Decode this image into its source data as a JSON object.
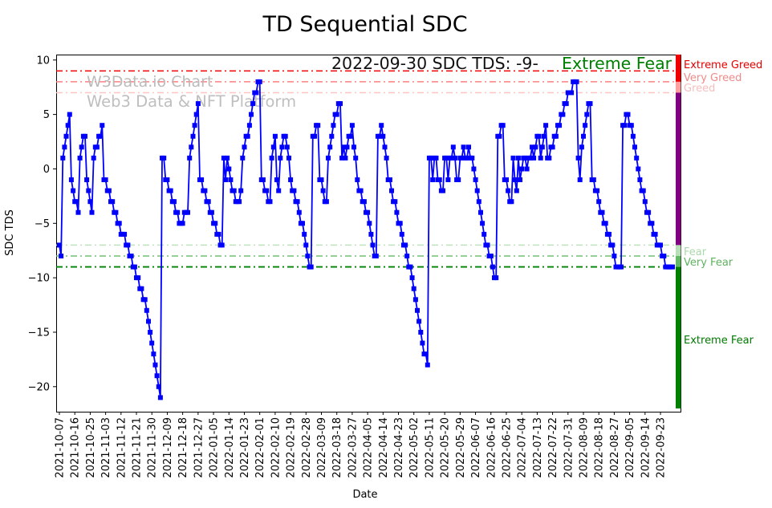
{
  "page": {
    "title": "TD Sequential SDC"
  },
  "chart_data": {
    "type": "line",
    "title": "TD Sequential SDC",
    "xlabel": "Date",
    "ylabel": "SDC TDS",
    "series_name": "SDC TDS",
    "start_date": "2021-10-07",
    "end_date": "2022-09-30",
    "frequency": "daily",
    "line_color": "#0000ff",
    "marker": "square",
    "ylim": [
      -22.3,
      10.5
    ],
    "grid": false,
    "legend": "none",
    "y_ticks": {
      "values": [
        10,
        5,
        0,
        -5,
        -10,
        -15,
        -20
      ],
      "labels": [
        "10",
        "5",
        "0",
        "−5",
        "−10",
        "−15",
        "−20"
      ]
    },
    "x_tick_interval_days": 9,
    "x_tick_labels": [
      "2021-10-07",
      "2021-10-16",
      "2021-10-25",
      "2021-11-03",
      "2021-11-12",
      "2021-11-21",
      "2021-11-30",
      "2021-12-09",
      "2021-12-18",
      "2021-12-27",
      "2022-01-05",
      "2022-01-14",
      "2022-01-23",
      "2022-02-01",
      "2022-02-10",
      "2022-02-19",
      "2022-02-28",
      "2022-03-09",
      "2022-03-18",
      "2022-03-27",
      "2022-04-05",
      "2022-04-14",
      "2022-04-23",
      "2022-05-02",
      "2022-05-11",
      "2022-05-20",
      "2022-05-29",
      "2022-06-07",
      "2022-06-16",
      "2022-06-25",
      "2022-07-04",
      "2022-07-13",
      "2022-07-22",
      "2022-07-31",
      "2022-08-09",
      "2022-08-18",
      "2022-08-27",
      "2022-09-05",
      "2022-09-14",
      "2022-09-23"
    ],
    "values": [
      -7,
      -8,
      1,
      2,
      3,
      4,
      5,
      -1,
      -2,
      -3,
      -3,
      -4,
      1,
      2,
      3,
      3,
      -1,
      -2,
      -3,
      -4,
      1,
      2,
      2,
      3,
      3,
      4,
      -1,
      -1,
      -2,
      -2,
      -3,
      -3,
      -4,
      -4,
      -5,
      -5,
      -6,
      -6,
      -6,
      -7,
      -7,
      -8,
      -8,
      -9,
      -9,
      -10,
      -10,
      -11,
      -11,
      -12,
      -12,
      -13,
      -14,
      -15,
      -16,
      -17,
      -18,
      -19,
      -20,
      -21,
      1,
      1,
      -1,
      -1,
      -2,
      -2,
      -3,
      -3,
      -4,
      -4,
      -5,
      -5,
      -5,
      -4,
      -4,
      -4,
      1,
      2,
      3,
      4,
      5,
      6,
      -1,
      -1,
      -2,
      -2,
      -3,
      -3,
      -4,
      -4,
      -5,
      -5,
      -6,
      -6,
      -7,
      -7,
      1,
      -1,
      1,
      0,
      -1,
      -2,
      -2,
      -3,
      -3,
      -3,
      -2,
      1,
      2,
      3,
      3,
      4,
      5,
      6,
      7,
      7,
      8,
      8,
      -1,
      -1,
      -2,
      -2,
      -3,
      -3,
      1,
      2,
      3,
      -1,
      -2,
      1,
      2,
      3,
      3,
      2,
      1,
      -1,
      -2,
      -2,
      -3,
      -3,
      -4,
      -5,
      -5,
      -6,
      -7,
      -8,
      -9,
      -9,
      3,
      3,
      4,
      4,
      -1,
      -1,
      -2,
      -3,
      -3,
      1,
      2,
      3,
      4,
      5,
      5,
      6,
      6,
      1,
      2,
      1,
      2,
      3,
      3,
      4,
      2,
      1,
      -1,
      -2,
      -2,
      -3,
      -3,
      -4,
      -4,
      -5,
      -6,
      -7,
      -8,
      -8,
      3,
      3,
      4,
      3,
      2,
      1,
      -1,
      -1,
      -2,
      -3,
      -3,
      -4,
      -5,
      -5,
      -6,
      -7,
      -7,
      -8,
      -9,
      -9,
      -10,
      -11,
      -12,
      -13,
      -14,
      -15,
      -16,
      -17,
      -17,
      -18,
      1,
      1,
      -1,
      1,
      1,
      -1,
      -1,
      -2,
      -2,
      1,
      1,
      -1,
      1,
      1,
      2,
      1,
      -1,
      -1,
      1,
      1,
      2,
      1,
      1,
      2,
      1,
      1,
      0,
      -1,
      -2,
      -3,
      -4,
      -5,
      -6,
      -7,
      -7,
      -8,
      -8,
      -9,
      -10,
      -10,
      3,
      3,
      4,
      4,
      -1,
      -1,
      -2,
      -3,
      -3,
      1,
      -1,
      -2,
      1,
      -1,
      0,
      1,
      1,
      0,
      1,
      1,
      2,
      1,
      2,
      3,
      3,
      1,
      2,
      3,
      4,
      1,
      1,
      2,
      2,
      3,
      3,
      4,
      4,
      5,
      5,
      6,
      6,
      7,
      7,
      7,
      8,
      8,
      8,
      1,
      -1,
      2,
      3,
      4,
      5,
      6,
      6,
      -1,
      -1,
      -2,
      -2,
      -3,
      -4,
      -4,
      -5,
      -5,
      -6,
      -6,
      -7,
      -7,
      -8,
      -9,
      -9,
      -9,
      -9,
      4,
      4,
      5,
      5,
      4,
      4,
      3,
      2,
      1,
      0,
      -1,
      -2,
      -2,
      -3,
      -4,
      -4,
      -5,
      -5,
      -6,
      -6,
      -7,
      -7,
      -7,
      -8,
      -8,
      -9,
      -9,
      -9,
      -9,
      -9
    ],
    "thresholds": [
      {
        "value": 9,
        "label": "Extreme Greed",
        "line_color": "#f20000",
        "label_color": "#e80000"
      },
      {
        "value": 8,
        "label": "Very Greed",
        "line_color": "#ff8080",
        "label_color": "#f08a8a"
      },
      {
        "value": 7,
        "label": "Greed",
        "line_color": "#ffc4c4",
        "label_color": "#f6bebe"
      },
      {
        "value": -7,
        "label": "Fear",
        "line_color": "#bfe3bf",
        "label_color": "#abd8ab"
      },
      {
        "value": -8,
        "label": "Very Fear",
        "line_color": "#70c070",
        "label_color": "#5fb25f"
      },
      {
        "value": -9,
        "label": "Extreme Fear",
        "line_color": "#008000",
        "label_color": "#007a00"
      }
    ],
    "zone_bar": [
      {
        "from": 10.5,
        "to": 8,
        "color": "#ee0000",
        "name": "extreme-greed-zone"
      },
      {
        "from": 8,
        "to": 7,
        "color": "#ff9f9f",
        "name": "greed-zone"
      },
      {
        "from": 7,
        "to": -7,
        "color": "#800080",
        "name": "neutral-zone"
      },
      {
        "from": -7,
        "to": -8,
        "color": "#b7e0b7",
        "name": "fear-zone"
      },
      {
        "from": -8,
        "to": -9,
        "color": "#63b863",
        "name": "very-fear-zone"
      },
      {
        "from": -9,
        "to": -22.0,
        "color": "#008000",
        "name": "extreme-fear-zone"
      }
    ],
    "annotation": {
      "text": "2022-09-30 SDC TDS: -9-",
      "status": "Extreme Fear",
      "status_color": "#008000"
    },
    "watermark": {
      "line1": "W3Data.io Chart",
      "line2": "Web3 Data & NFT Platform"
    }
  }
}
